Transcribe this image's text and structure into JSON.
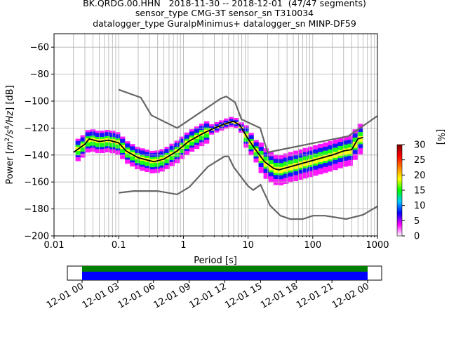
{
  "title_lines": [
    "BK.QRDG.00.HHN   2018-11-30 -- 2018-12-01  (47/47 segments)",
    "sensor_type CMG-3T sensor_sn T310034",
    "datalogger_type GuralpMinimus+ datalogger_sn MINP-DF59"
  ],
  "chart_data": {
    "type": "heatmap",
    "xlabel": "Period [s]",
    "ylabel": "Power [m²/s⁴/Hz] [dB]",
    "ylabel_parts": {
      "pre": "Power [",
      "m": "m",
      "two": "2",
      "slash1": "/s",
      "four": "4",
      "slash2": "/Hz",
      "post": "] [dB]"
    },
    "x_scale": "log",
    "xlim": [
      0.01,
      1000
    ],
    "ylim": [
      -200,
      -50
    ],
    "x_ticks": [
      0.01,
      0.1,
      1,
      10,
      100,
      1000
    ],
    "x_tick_labels": [
      "0.01",
      "0.1",
      "1",
      "10",
      "100",
      "1000"
    ],
    "y_ticks": [
      -200,
      -180,
      -160,
      -140,
      -120,
      -100,
      -80,
      -60
    ],
    "y_tick_labels": [
      "−200",
      "−180",
      "−160",
      "−140",
      "−120",
      "−100",
      "−80",
      "−60"
    ],
    "grid": true,
    "colorbar": {
      "label": "[%]",
      "range": [
        0,
        30
      ],
      "ticks": [
        0,
        5,
        10,
        15,
        20,
        25,
        30
      ],
      "tick_labels": [
        "0",
        "5",
        "10",
        "15",
        "20",
        "25",
        "30"
      ],
      "colors": [
        "#ffffff",
        "#ff00ff",
        "#0000ff",
        "#00c8ff",
        "#00ff00",
        "#ffff00",
        "#ff8000",
        "#ff0000",
        "#800000"
      ]
    },
    "series": [
      {
        "name": "",
        "role": "NHNM",
        "color": "#666666",
        "points": [
          [
            0.1,
            -91.5
          ],
          [
            0.22,
            -97.4
          ],
          [
            0.32,
            -110.5
          ],
          [
            0.8,
            -120
          ],
          [
            3.8,
            -98
          ],
          [
            4.6,
            -96.5
          ],
          [
            6.3,
            -101
          ],
          [
            7.9,
            -113.5
          ],
          [
            15.4,
            -120
          ],
          [
            20,
            -138
          ],
          [
            354.8,
            -126
          ],
          [
            1000,
            -111
          ]
        ]
      },
      {
        "name": "",
        "role": "NLNM",
        "color": "#666666",
        "points": [
          [
            0.1,
            -168
          ],
          [
            0.17,
            -166.7
          ],
          [
            0.4,
            -166.7
          ],
          [
            0.8,
            -169.2
          ],
          [
            1.24,
            -163.7
          ],
          [
            2.4,
            -148.6
          ],
          [
            4.3,
            -141.1
          ],
          [
            5,
            -141.1
          ],
          [
            6,
            -149
          ],
          [
            10,
            -163
          ],
          [
            12,
            -166
          ],
          [
            15.6,
            -162.1
          ],
          [
            21.9,
            -177.5
          ],
          [
            31.6,
            -185
          ],
          [
            45,
            -187.5
          ],
          [
            70,
            -187.5
          ],
          [
            101,
            -185
          ],
          [
            154,
            -185
          ],
          [
            328,
            -187.5
          ],
          [
            600,
            -184.4
          ],
          [
            1000,
            -178
          ]
        ]
      },
      {
        "name": "",
        "role": "mode",
        "color": "#000000",
        "points": [
          [
            0.02,
            -138
          ],
          [
            0.03,
            -132
          ],
          [
            0.035,
            -128
          ],
          [
            0.05,
            -130
          ],
          [
            0.07,
            -129
          ],
          [
            0.1,
            -131
          ],
          [
            0.13,
            -137
          ],
          [
            0.2,
            -142
          ],
          [
            0.35,
            -145
          ],
          [
            0.5,
            -143
          ],
          [
            0.8,
            -137
          ],
          [
            1.2,
            -130
          ],
          [
            2,
            -124
          ],
          [
            3,
            -120
          ],
          [
            5,
            -116
          ],
          [
            6,
            -115
          ],
          [
            7.5,
            -118
          ],
          [
            10,
            -128
          ],
          [
            13,
            -136
          ],
          [
            18,
            -145
          ],
          [
            25,
            -150
          ],
          [
            30,
            -151
          ],
          [
            50,
            -148
          ],
          [
            100,
            -144
          ],
          [
            200,
            -140
          ],
          [
            300,
            -137
          ],
          [
            400,
            -136
          ],
          [
            500,
            -128
          ],
          [
            600,
            -127
          ]
        ]
      }
    ],
    "time_axis": {
      "ticks": [
        "12-01 00",
        "12-01 03",
        "12-01 06",
        "12-01 09",
        "12-01 12",
        "12-01 15",
        "12-01 18",
        "12-01 21",
        "12-02 00"
      ],
      "coverage_colors": [
        "#008000",
        "#0000ff"
      ]
    }
  }
}
